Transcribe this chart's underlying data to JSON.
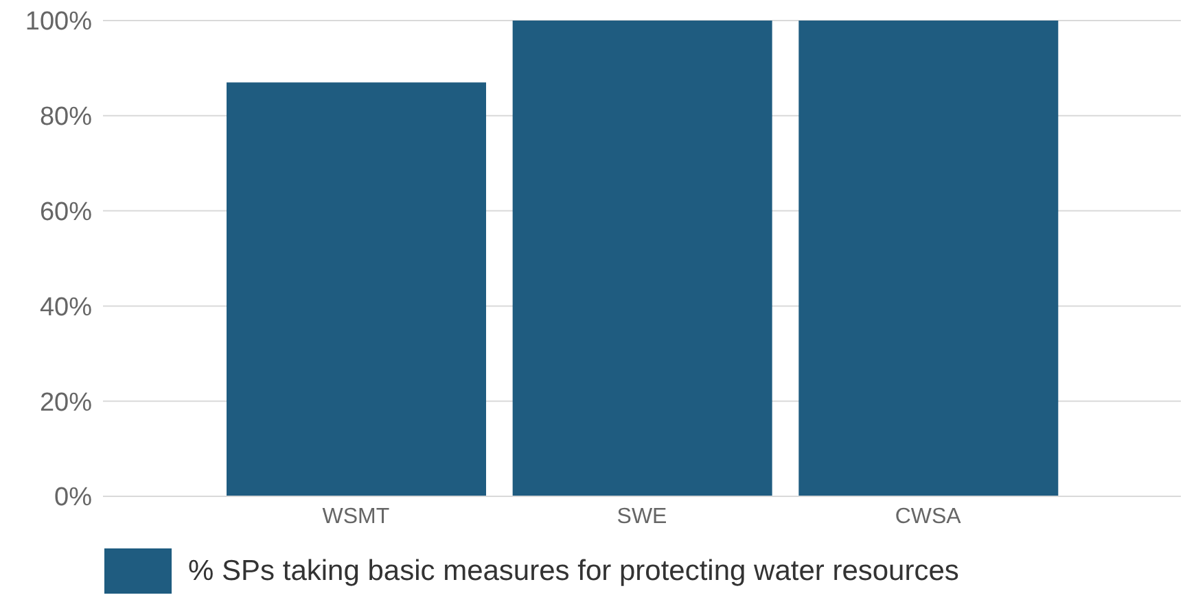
{
  "chart_data": {
    "type": "bar",
    "categories": [
      "WSMT",
      "SWE",
      "CWSA"
    ],
    "series": [
      {
        "name": "% SPs taking basic measures for protecting water resources",
        "color": "#1f5c80",
        "values": [
          87,
          100,
          100
        ]
      }
    ],
    "ylim": [
      0,
      100
    ],
    "yticks": [
      {
        "value": 0,
        "label": "0%"
      },
      {
        "value": 20,
        "label": "20%"
      },
      {
        "value": 40,
        "label": "40%"
      },
      {
        "value": 60,
        "label": "60%"
      },
      {
        "value": 80,
        "label": "80%"
      },
      {
        "value": 100,
        "label": "100%"
      }
    ],
    "grid": "y",
    "legend": "bottom left"
  }
}
